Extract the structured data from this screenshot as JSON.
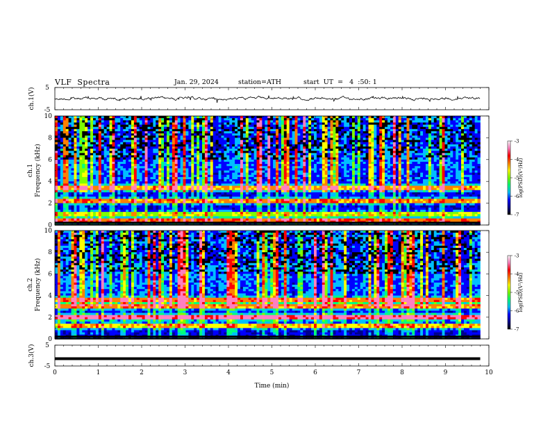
{
  "header": {
    "title": "VLF  Spectra",
    "date": "Jan. 29, 2024",
    "station": "station=ATH",
    "start": "start  UT  =   4  :50: 1"
  },
  "chart_data": {
    "type": "heatmap",
    "title": "VLF  Spectra",
    "xlabel": "Time (min)",
    "xlim": [
      0,
      10
    ],
    "xticks": [
      "0",
      "1",
      "2",
      "3",
      "4",
      "5",
      "6",
      "7",
      "8",
      "9",
      "10"
    ],
    "data_extent_min": 9.8,
    "panels": [
      {
        "id": "ch1-waveform",
        "kind": "line",
        "ylabel": "ch.1(V)",
        "ylim": [
          -5,
          5
        ],
        "yticks": [
          "5",
          "-5"
        ],
        "level": 0
      },
      {
        "id": "ch1-spectrogram",
        "kind": "heatmap",
        "ylabel": "ch.1\nFrequency (kHz)",
        "ylim": [
          0,
          10
        ],
        "yticks": [
          "0",
          "2",
          "4",
          "6",
          "8",
          "10"
        ],
        "zlabel": "log(PSD)(V²/Hz)",
        "zlim": [
          -7,
          -3
        ],
        "zticks": [
          "-3",
          "-4",
          "-5",
          "-6",
          "-7"
        ],
        "bands_khz": [
          {
            "f": 2.2,
            "level": 0.62
          },
          {
            "f": 3.4,
            "level": 0.55
          },
          {
            "f": 1.0,
            "level": 0.45
          },
          {
            "f": 0.4,
            "level": 0.7
          }
        ]
      },
      {
        "id": "ch2-spectrogram",
        "kind": "heatmap",
        "ylabel": "ch.2\nFrequency (kHz)",
        "ylim": [
          0,
          10
        ],
        "yticks": [
          "0",
          "2",
          "4",
          "6",
          "8",
          "10"
        ],
        "zlabel": "log(PSD)(V²/Hz)",
        "zlim": [
          -7,
          -3
        ],
        "zticks": [
          "-3",
          "-4",
          "-5",
          "-6",
          "-7"
        ],
        "bands_khz": [
          {
            "f": 2.0,
            "level": 0.85
          },
          {
            "f": 3.0,
            "level": 0.6
          },
          {
            "f": 3.6,
            "level": 0.6
          },
          {
            "f": 1.2,
            "level": 0.55
          }
        ]
      },
      {
        "id": "ch3-waveform",
        "kind": "line",
        "ylabel": "ch.3(V)",
        "ylim": [
          -5,
          5
        ],
        "yticks": [
          "5",
          "-5"
        ],
        "level": -1.5
      }
    ],
    "colorscale": [
      "#000000",
      "#00008b",
      "#0000ff",
      "#00bfff",
      "#00ff7f",
      "#7fff00",
      "#ffff00",
      "#ff8000",
      "#ff0000",
      "#ff80c0",
      "#ffffff"
    ]
  }
}
